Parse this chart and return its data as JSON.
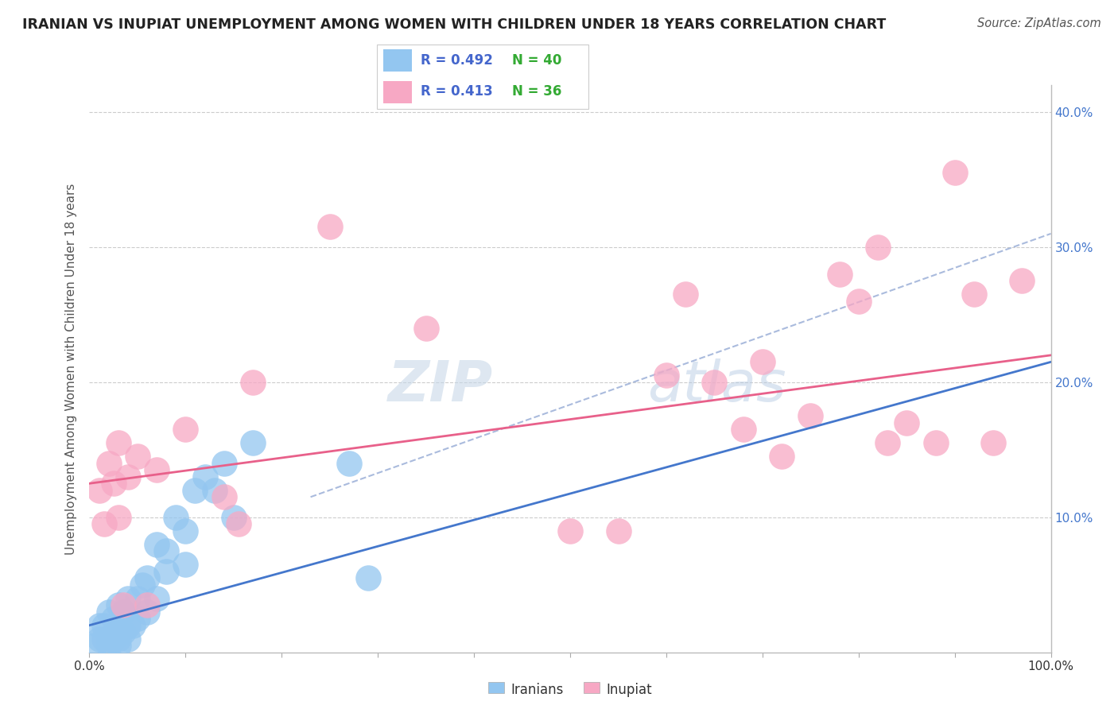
{
  "title": "IRANIAN VS INUPIAT UNEMPLOYMENT AMONG WOMEN WITH CHILDREN UNDER 18 YEARS CORRELATION CHART",
  "source": "Source: ZipAtlas.com",
  "ylabel": "Unemployment Among Women with Children Under 18 years",
  "xlim": [
    0.0,
    1.0
  ],
  "ylim": [
    0.0,
    0.42
  ],
  "xticks": [
    0.0,
    0.1,
    0.2,
    0.3,
    0.4,
    0.5,
    0.6,
    0.7,
    0.8,
    0.9,
    1.0
  ],
  "yticks": [
    0.0,
    0.1,
    0.2,
    0.3,
    0.4
  ],
  "xticklabels": [
    "0.0%",
    "",
    "",
    "",
    "",
    "",
    "",
    "",
    "",
    "",
    "100.0%"
  ],
  "yticklabels": [
    "",
    "10.0%",
    "20.0%",
    "30.0%",
    "40.0%"
  ],
  "iranian_R": 0.492,
  "iranian_N": 40,
  "inupiat_R": 0.413,
  "inupiat_N": 36,
  "iranian_color": "#93c6f0",
  "inupiat_color": "#f7a8c4",
  "iranian_line_color": "#4477cc",
  "inupiat_line_color": "#e8608a",
  "dashed_line_color": "#aabbdd",
  "legend_R_color": "#4466cc",
  "legend_N_color": "#33aa33",
  "watermark_color": "#c5d8ee",
  "iranian_x": [
    0.005,
    0.01,
    0.01,
    0.015,
    0.015,
    0.02,
    0.02,
    0.02,
    0.025,
    0.025,
    0.03,
    0.03,
    0.03,
    0.03,
    0.035,
    0.035,
    0.04,
    0.04,
    0.04,
    0.045,
    0.05,
    0.05,
    0.055,
    0.06,
    0.06,
    0.07,
    0.07,
    0.08,
    0.08,
    0.09,
    0.1,
    0.1,
    0.11,
    0.12,
    0.13,
    0.14,
    0.15,
    0.17,
    0.27,
    0.29
  ],
  "iranian_y": [
    0.005,
    0.01,
    0.02,
    0.01,
    0.02,
    0.005,
    0.01,
    0.03,
    0.01,
    0.025,
    0.005,
    0.01,
    0.02,
    0.035,
    0.015,
    0.03,
    0.01,
    0.02,
    0.04,
    0.02,
    0.025,
    0.04,
    0.05,
    0.03,
    0.055,
    0.04,
    0.08,
    0.06,
    0.075,
    0.1,
    0.065,
    0.09,
    0.12,
    0.13,
    0.12,
    0.14,
    0.1,
    0.155,
    0.14,
    0.055
  ],
  "inupiat_x": [
    0.01,
    0.015,
    0.02,
    0.025,
    0.03,
    0.03,
    0.035,
    0.04,
    0.05,
    0.06,
    0.07,
    0.1,
    0.14,
    0.155,
    0.17,
    0.25,
    0.35,
    0.5,
    0.55,
    0.6,
    0.62,
    0.65,
    0.68,
    0.7,
    0.72,
    0.75,
    0.78,
    0.8,
    0.82,
    0.83,
    0.85,
    0.88,
    0.9,
    0.92,
    0.94,
    0.97
  ],
  "inupiat_y": [
    0.12,
    0.095,
    0.14,
    0.125,
    0.1,
    0.155,
    0.035,
    0.13,
    0.145,
    0.035,
    0.135,
    0.165,
    0.115,
    0.095,
    0.2,
    0.315,
    0.24,
    0.09,
    0.09,
    0.205,
    0.265,
    0.2,
    0.165,
    0.215,
    0.145,
    0.175,
    0.28,
    0.26,
    0.3,
    0.155,
    0.17,
    0.155,
    0.355,
    0.265,
    0.155,
    0.275
  ],
  "iranian_line_x0": 0.0,
  "iranian_line_y0": 0.02,
  "iranian_line_x1": 1.0,
  "iranian_line_y1": 0.215,
  "inupiat_line_x0": 0.0,
  "inupiat_line_y0": 0.125,
  "inupiat_line_x1": 1.0,
  "inupiat_line_y1": 0.22,
  "dashed_line_x0": 0.23,
  "dashed_line_y0": 0.115,
  "dashed_line_x1": 1.0,
  "dashed_line_y1": 0.31
}
